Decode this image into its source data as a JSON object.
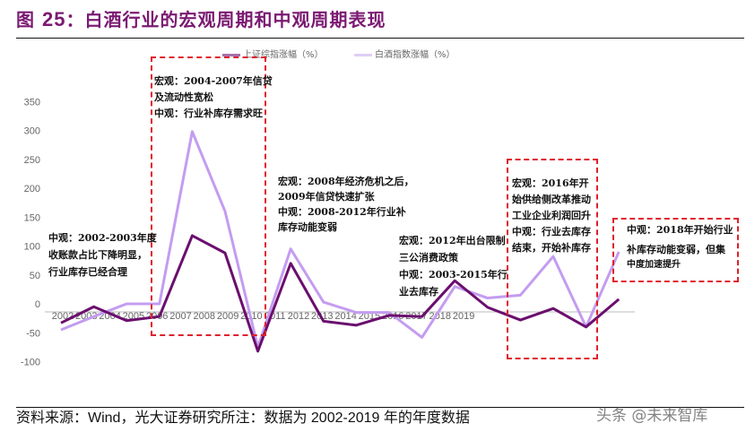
{
  "title": {
    "prefix": "图",
    "number": "25",
    "text": "：白酒行业的宏观周期和中观周期表现"
  },
  "colors": {
    "title": "#7b1a72",
    "shanghai": "#6b0f6e",
    "baijiu": "#c49cf0",
    "box": "#e0202c"
  },
  "chart_data": {
    "type": "line",
    "categories": [
      "2002",
      "2003",
      "2004",
      "2005",
      "2006",
      "2007",
      "2008",
      "2009",
      "2010",
      "2011",
      "2012",
      "2013",
      "2014",
      "2015",
      "2016",
      "2017",
      "2018",
      "2019"
    ],
    "ylim": [
      -100,
      350
    ],
    "yticks": [
      "350",
      "300",
      "250",
      "200",
      "150",
      "100",
      "50",
      "0",
      "-50",
      "-100"
    ],
    "grid": false,
    "legend_position": "top",
    "series": [
      {
        "name": "上证综指涨幅（%）",
        "values": [
          -33,
          -5,
          -29,
          -22,
          118,
          88,
          -82,
          70,
          -30,
          -37,
          -20,
          -22,
          40,
          -6,
          -28,
          -8,
          -40,
          8
        ]
      },
      {
        "name": "白酒指数涨幅（%）",
        "values": [
          -45,
          -22,
          0,
          0,
          298,
          160,
          -75,
          95,
          3,
          -15,
          -15,
          -58,
          30,
          10,
          15,
          82,
          -40,
          90
        ]
      }
    ]
  },
  "annotations": {
    "a1": [
      "宏观：2004-2007年信贷",
      "及流动性宽松",
      "中观：行业补库存需求旺"
    ],
    "a2": [
      "宏观：2008年经济危机之后，",
      "2009年信贷快速扩张",
      "中观：2008-2012年行业补",
      "库存动能变弱"
    ],
    "a3": [
      "中观：2002-2003年度",
      "收账款占比下降明显，",
      "行业库存已经合理"
    ],
    "a4": [
      "宏观：2012年出台限制",
      "三公消费政策",
      "中观：2003-2015年行",
      "业去库存"
    ],
    "a5": [
      "宏观：2016年开",
      "始供给侧改革推动",
      "工业企业利润回升",
      "中观：行业去库存",
      "结束，开始补库存"
    ],
    "a6": [
      "中观：2018年开始行业",
      "补库存动能变弱，但集",
      "中度加速提升"
    ]
  },
  "footer": "资料来源：Wind，光大证券研究所注：数据为 2002-2019 年的年度数据",
  "watermark": "头条 @未来智库"
}
